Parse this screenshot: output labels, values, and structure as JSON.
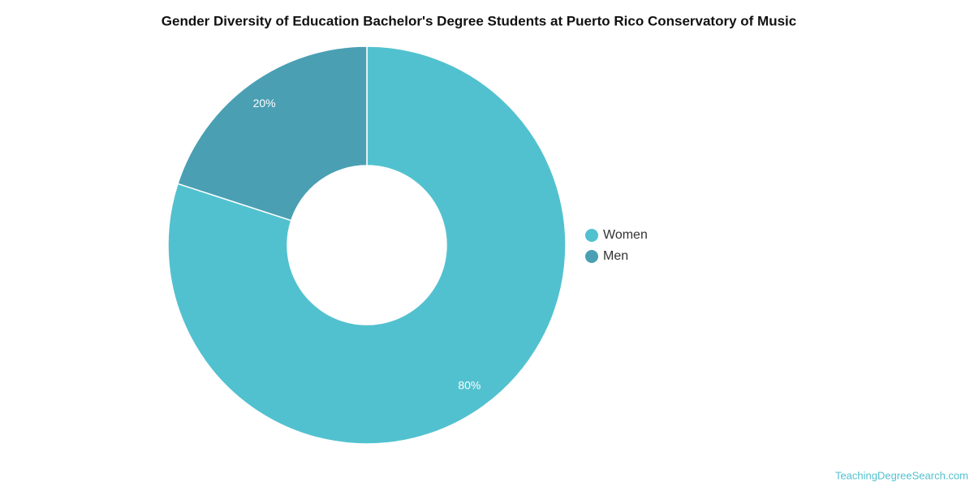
{
  "chart_data": {
    "type": "donut",
    "title": "Gender Diversity of Education Bachelor's Degree Students at Puerto Rico Conservatory of Music",
    "categories": [
      "Women",
      "Men"
    ],
    "values": [
      80,
      20
    ],
    "value_labels": [
      "80%",
      "20%"
    ],
    "colors": [
      "#52c1cf",
      "#4a9fb3"
    ],
    "legend": "right",
    "watermark": "TeachingDegreeSearch.com"
  }
}
